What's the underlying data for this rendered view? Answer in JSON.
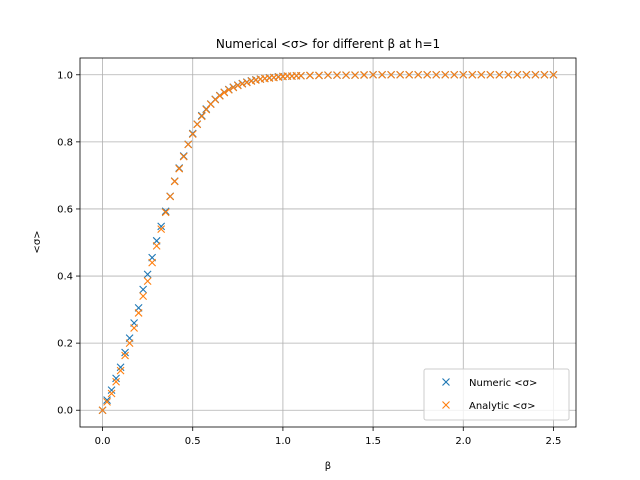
{
  "chart_data": {
    "type": "scatter",
    "title": "Numerical <σ> for different β at h=1",
    "xlabel": "β",
    "ylabel": "<σ>",
    "xlim": [
      -0.125,
      2.625
    ],
    "ylim": [
      -0.05,
      1.05
    ],
    "xticks": [
      0.0,
      0.5,
      1.0,
      1.5,
      2.0,
      2.5
    ],
    "xtick_labels": [
      "0.0",
      "0.5",
      "1.0",
      "1.5",
      "2.0",
      "2.5"
    ],
    "yticks": [
      0.0,
      0.2,
      0.4,
      0.6,
      0.8,
      1.0
    ],
    "ytick_labels": [
      "0.0",
      "0.2",
      "0.4",
      "0.6",
      "0.8",
      "1.0"
    ],
    "grid": true,
    "legend_position": "lower-right",
    "marker": "x",
    "series": [
      {
        "name": "Numeric <σ>",
        "color": "#1f77b4",
        "x": [
          0.0,
          0.025,
          0.05,
          0.075,
          0.1,
          0.125,
          0.15,
          0.175,
          0.2,
          0.225,
          0.25,
          0.275,
          0.3,
          0.325,
          0.35,
          0.375,
          0.4,
          0.425,
          0.45,
          0.475,
          0.5,
          0.525,
          0.55,
          0.575,
          0.6,
          0.625,
          0.65,
          0.675,
          0.7,
          0.725,
          0.75,
          0.775,
          0.8,
          0.825,
          0.85,
          0.875,
          0.9,
          0.925,
          0.95,
          0.975,
          1.0,
          1.025,
          1.05,
          1.075,
          1.1,
          1.15,
          1.2,
          1.25,
          1.3,
          1.35,
          1.4,
          1.45,
          1.5,
          1.55,
          1.6,
          1.65,
          1.7,
          1.75,
          1.8,
          1.85,
          1.9,
          1.95,
          2.0,
          2.05,
          2.1,
          2.15,
          2.2,
          2.25,
          2.3,
          2.35,
          2.4,
          2.45,
          2.5
        ],
        "y": [
          0.0,
          0.03,
          0.06,
          0.095,
          0.128,
          0.172,
          0.215,
          0.26,
          0.305,
          0.36,
          0.405,
          0.455,
          0.505,
          0.548,
          0.593,
          0.638,
          0.683,
          0.722,
          0.758,
          0.793,
          0.825,
          0.853,
          0.878,
          0.898,
          0.913,
          0.927,
          0.938,
          0.948,
          0.956,
          0.963,
          0.969,
          0.974,
          0.978,
          0.982,
          0.985,
          0.987,
          0.989,
          0.991,
          0.992,
          0.994,
          0.995,
          0.996,
          0.996,
          0.997,
          0.997,
          0.998,
          0.998,
          0.999,
          0.999,
          0.999,
          0.999,
          0.9995,
          1.0,
          1.0,
          1.0,
          1.0,
          1.0,
          1.0,
          1.0,
          1.0,
          1.0,
          1.0,
          1.0,
          1.0,
          1.0,
          1.0,
          1.0,
          1.0,
          1.0,
          1.0,
          1.0,
          1.0,
          1.0
        ]
      },
      {
        "name": "Analytic <σ>",
        "color": "#ff7f0e",
        "x": [
          0.0,
          0.025,
          0.05,
          0.075,
          0.1,
          0.125,
          0.15,
          0.175,
          0.2,
          0.225,
          0.25,
          0.275,
          0.3,
          0.325,
          0.35,
          0.375,
          0.4,
          0.425,
          0.45,
          0.475,
          0.5,
          0.525,
          0.55,
          0.575,
          0.6,
          0.625,
          0.65,
          0.675,
          0.7,
          0.725,
          0.75,
          0.775,
          0.8,
          0.825,
          0.85,
          0.875,
          0.9,
          0.925,
          0.95,
          0.975,
          1.0,
          1.025,
          1.05,
          1.075,
          1.1,
          1.15,
          1.2,
          1.25,
          1.3,
          1.35,
          1.4,
          1.45,
          1.5,
          1.55,
          1.6,
          1.65,
          1.7,
          1.75,
          1.8,
          1.85,
          1.9,
          1.95,
          2.0,
          2.05,
          2.1,
          2.15,
          2.2,
          2.25,
          2.3,
          2.35,
          2.4,
          2.45,
          2.5
        ],
        "y": [
          0.0,
          0.025,
          0.05,
          0.085,
          0.118,
          0.163,
          0.2,
          0.245,
          0.29,
          0.34,
          0.385,
          0.44,
          0.49,
          0.54,
          0.59,
          0.637,
          0.682,
          0.72,
          0.756,
          0.792,
          0.823,
          0.852,
          0.876,
          0.896,
          0.912,
          0.926,
          0.937,
          0.947,
          0.955,
          0.962,
          0.968,
          0.973,
          0.977,
          0.981,
          0.984,
          0.987,
          0.989,
          0.99,
          0.992,
          0.993,
          0.995,
          0.996,
          0.996,
          0.997,
          0.997,
          0.998,
          0.998,
          0.999,
          0.999,
          0.999,
          0.999,
          0.9995,
          1.0,
          1.0,
          1.0,
          1.0,
          1.0,
          1.0,
          1.0,
          1.0,
          1.0,
          1.0,
          1.0,
          1.0,
          1.0,
          1.0,
          1.0,
          1.0,
          1.0,
          1.0,
          1.0,
          1.0,
          1.0
        ]
      }
    ]
  }
}
